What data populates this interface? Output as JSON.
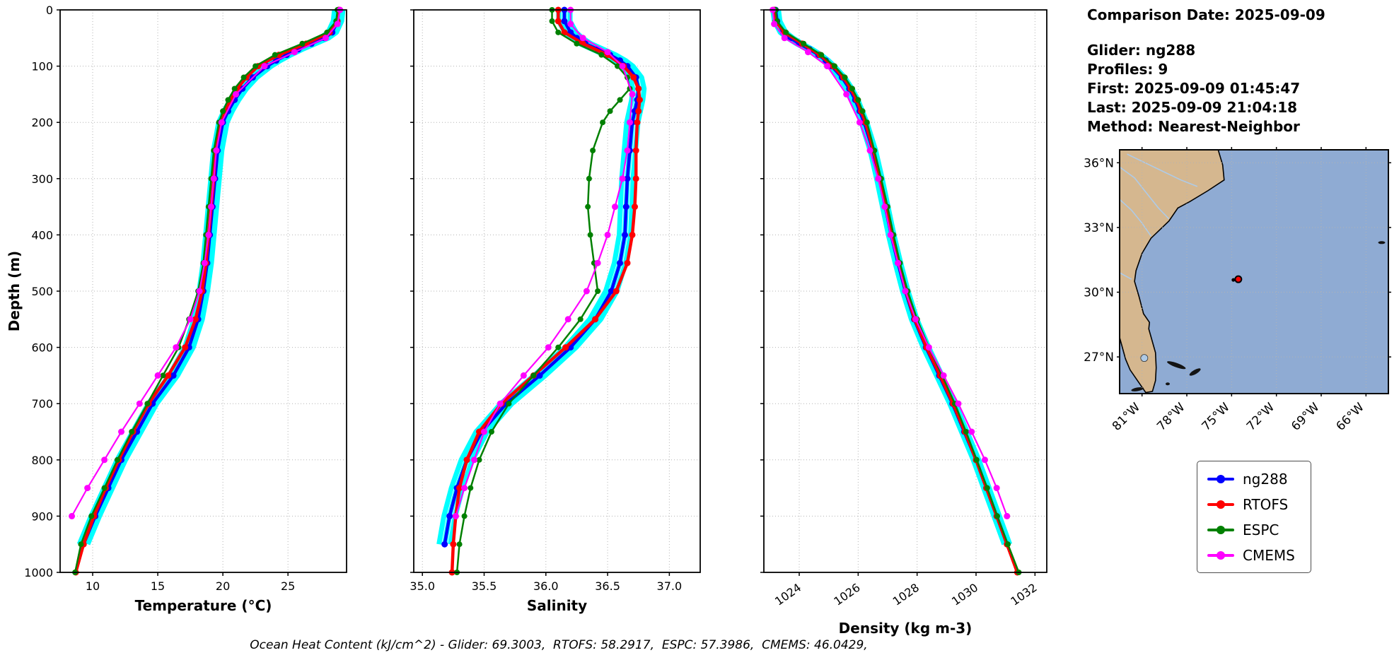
{
  "info": {
    "comparison_date": "Comparison Date: 2025-09-09",
    "glider": "Glider: ng288",
    "profiles": "Profiles: 9",
    "first": "First: 2025-09-09 01:45:47",
    "last": "Last: 2025-09-09 21:04:18",
    "method": "Method: Nearest-Neighbor"
  },
  "footer": "Ocean Heat Content (kJ/cm^2) - Glider: 69.3003,  RTOFS: 58.2917,  ESPC: 57.3986,  CMEMS: 46.0429,",
  "legend": {
    "items": [
      {
        "label": "ng288",
        "color": "#0000ff"
      },
      {
        "label": "RTOFS",
        "color": "#ff0000"
      },
      {
        "label": "ESPC",
        "color": "#008000"
      },
      {
        "label": "CMEMS",
        "color": "#ff00ff"
      }
    ]
  },
  "map": {
    "lon_range": [
      -82.5,
      -64.5
    ],
    "lat_range": [
      25.3,
      36.6
    ],
    "ocean_color": "#8fabd3",
    "land_color": "#d5b78f",
    "river_color": "#aecbe8",
    "lat_ticks": [
      {
        "v": 36,
        "label": "36°N"
      },
      {
        "v": 33,
        "label": "33°N"
      },
      {
        "v": 30,
        "label": "30°N"
      },
      {
        "v": 27,
        "label": "27°N"
      }
    ],
    "lon_ticks": [
      {
        "v": -81,
        "label": "81°W"
      },
      {
        "v": -78,
        "label": "78°W"
      },
      {
        "v": -75,
        "label": "75°W"
      },
      {
        "v": -72,
        "label": "72°W"
      },
      {
        "v": -69,
        "label": "69°W"
      },
      {
        "v": -66,
        "label": "66°W"
      }
    ],
    "marker": {
      "lon": -74.55,
      "lat": 30.6,
      "color": "#ff0000"
    }
  },
  "chart_data": [
    {
      "type": "line",
      "xlabel": "Temperature (°C)",
      "ylabel": "Depth (m)",
      "xlim": [
        7.5,
        29.5
      ],
      "ylim": [
        0,
        1000
      ],
      "show_ytick_labels": true,
      "rotate_xticks": false,
      "xlabel_dy": 54,
      "envelope_series": "ng288",
      "envelope_color": "#00ffff",
      "envelope_dx": 6,
      "xticks": [
        {
          "v": 10,
          "label": "10"
        },
        {
          "v": 15,
          "label": "15"
        },
        {
          "v": 20,
          "label": "20"
        },
        {
          "v": 25,
          "label": "25"
        }
      ],
      "yticks": [
        {
          "v": 0,
          "label": "0"
        },
        {
          "v": 100,
          "label": "100"
        },
        {
          "v": 200,
          "label": "200"
        },
        {
          "v": 300,
          "label": "300"
        },
        {
          "v": 400,
          "label": "400"
        },
        {
          "v": 500,
          "label": "500"
        },
        {
          "v": 600,
          "label": "600"
        },
        {
          "v": 700,
          "label": "700"
        },
        {
          "v": 800,
          "label": "800"
        },
        {
          "v": 900,
          "label": "900"
        },
        {
          "v": 1000,
          "label": "1000"
        }
      ],
      "series": [
        {
          "name": "ng288",
          "color": "#0000ff",
          "lw": 4.5,
          "marker": 4.5,
          "depths": [
            0,
            20,
            40,
            50,
            60,
            70,
            80,
            90,
            100,
            120,
            140,
            160,
            180,
            200,
            250,
            300,
            350,
            400,
            450,
            500,
            550,
            600,
            650,
            700,
            750,
            800,
            850,
            900,
            950
          ],
          "values": [
            28.9,
            28.8,
            28.4,
            27.8,
            26.8,
            25.8,
            24.9,
            24.1,
            23.4,
            22.3,
            21.5,
            20.9,
            20.4,
            20.0,
            19.6,
            19.4,
            19.2,
            19.0,
            18.8,
            18.5,
            18.1,
            17.4,
            16.2,
            14.6,
            13.4,
            12.2,
            11.2,
            10.2,
            9.3
          ]
        },
        {
          "name": "RTOFS",
          "color": "#ff0000",
          "lw": 4.5,
          "marker": 4.5,
          "depths": [
            0,
            20,
            40,
            60,
            80,
            100,
            120,
            140,
            160,
            180,
            200,
            250,
            300,
            350,
            400,
            450,
            500,
            550,
            600,
            650,
            700,
            750,
            800,
            850,
            900,
            950,
            1000
          ],
          "values": [
            28.9,
            28.8,
            28.2,
            26.4,
            24.3,
            22.7,
            21.8,
            21.1,
            20.6,
            20.1,
            19.8,
            19.4,
            19.3,
            19.1,
            18.9,
            18.7,
            18.4,
            17.9,
            17.1,
            15.8,
            14.3,
            13.1,
            12.0,
            11.0,
            10.1,
            9.3,
            8.7
          ]
        },
        {
          "name": "ESPC",
          "color": "#008000",
          "lw": 2.5,
          "marker": 4,
          "depths": [
            0,
            20,
            40,
            60,
            80,
            100,
            120,
            140,
            160,
            180,
            200,
            250,
            300,
            350,
            400,
            450,
            500,
            550,
            600,
            650,
            700,
            750,
            800,
            850,
            900,
            950,
            1000
          ],
          "values": [
            28.8,
            28.7,
            28.0,
            26.1,
            24.0,
            22.5,
            21.6,
            20.9,
            20.4,
            20.0,
            19.7,
            19.3,
            19.1,
            18.9,
            18.7,
            18.5,
            18.1,
            17.4,
            16.6,
            15.4,
            14.2,
            13.0,
            11.9,
            10.9,
            9.9,
            9.1,
            8.65
          ]
        },
        {
          "name": "CMEMS",
          "color": "#ff00ff",
          "lw": 2.2,
          "marker": 4.5,
          "depths": [
            0,
            25,
            50,
            75,
            100,
            150,
            200,
            250,
            300,
            350,
            400,
            450,
            500,
            550,
            600,
            650,
            700,
            750,
            800,
            850,
            900
          ],
          "values": [
            29.0,
            28.8,
            27.9,
            25.5,
            23.2,
            21.0,
            19.9,
            19.5,
            19.3,
            19.1,
            18.9,
            18.6,
            18.2,
            17.5,
            16.4,
            15.0,
            13.6,
            12.2,
            10.9,
            9.6,
            8.4
          ]
        }
      ]
    },
    {
      "type": "line",
      "xlabel": "Salinity",
      "ylabel": "",
      "xlim": [
        34.93,
        37.25
      ],
      "ylim": [
        0,
        1000
      ],
      "show_ytick_labels": false,
      "rotate_xticks": false,
      "xlabel_dy": 54,
      "envelope_series": "ng288",
      "envelope_color": "#00ffff",
      "envelope_dx": 8,
      "xticks": [
        {
          "v": 35.0,
          "label": "35.0"
        },
        {
          "v": 35.5,
          "label": "35.5"
        },
        {
          "v": 36.0,
          "label": "36.0"
        },
        {
          "v": 36.5,
          "label": "36.5"
        },
        {
          "v": 37.0,
          "label": "37.0"
        }
      ],
      "yticks": [
        {
          "v": 0,
          "label": "0"
        },
        {
          "v": 100,
          "label": "100"
        },
        {
          "v": 200,
          "label": "200"
        },
        {
          "v": 300,
          "label": "300"
        },
        {
          "v": 400,
          "label": "400"
        },
        {
          "v": 500,
          "label": "500"
        },
        {
          "v": 600,
          "label": "600"
        },
        {
          "v": 700,
          "label": "700"
        },
        {
          "v": 800,
          "label": "800"
        },
        {
          "v": 900,
          "label": "900"
        },
        {
          "v": 1000,
          "label": "1000"
        }
      ],
      "series": [
        {
          "name": "ng288",
          "color": "#0000ff",
          "lw": 4.5,
          "marker": 4.5,
          "depths": [
            0,
            20,
            40,
            50,
            60,
            70,
            80,
            90,
            100,
            120,
            140,
            160,
            180,
            200,
            250,
            300,
            350,
            400,
            450,
            500,
            550,
            600,
            650,
            700,
            750,
            800,
            850,
            900,
            950
          ],
          "values": [
            36.15,
            36.15,
            36.2,
            36.25,
            36.32,
            36.42,
            36.52,
            36.6,
            36.66,
            36.73,
            36.75,
            36.74,
            36.72,
            36.7,
            36.68,
            36.66,
            36.65,
            36.64,
            36.6,
            36.53,
            36.4,
            36.2,
            35.95,
            35.68,
            35.48,
            35.36,
            35.28,
            35.22,
            35.18
          ]
        },
        {
          "name": "RTOFS",
          "color": "#ff0000",
          "lw": 4.5,
          "marker": 4.5,
          "depths": [
            0,
            20,
            40,
            60,
            80,
            100,
            120,
            140,
            160,
            180,
            200,
            250,
            300,
            350,
            400,
            450,
            500,
            550,
            600,
            650,
            700,
            750,
            800,
            850,
            900,
            950,
            1000
          ],
          "values": [
            36.1,
            36.1,
            36.15,
            36.3,
            36.5,
            36.63,
            36.71,
            36.75,
            36.76,
            36.75,
            36.74,
            36.73,
            36.73,
            36.72,
            36.7,
            36.66,
            36.57,
            36.4,
            36.16,
            35.9,
            35.64,
            35.46,
            35.36,
            35.3,
            35.27,
            35.25,
            35.24
          ]
        },
        {
          "name": "ESPC",
          "color": "#008000",
          "lw": 2.5,
          "marker": 4,
          "depths": [
            0,
            20,
            40,
            60,
            80,
            100,
            120,
            140,
            160,
            180,
            200,
            250,
            300,
            350,
            400,
            450,
            500,
            550,
            600,
            650,
            700,
            750,
            800,
            850,
            900,
            950,
            1000
          ],
          "values": [
            36.05,
            36.05,
            36.1,
            36.25,
            36.45,
            36.58,
            36.66,
            36.68,
            36.6,
            36.52,
            36.46,
            36.38,
            36.35,
            36.34,
            36.36,
            36.39,
            36.42,
            36.28,
            36.1,
            35.9,
            35.7,
            35.56,
            35.46,
            35.39,
            35.34,
            35.3,
            35.28
          ]
        },
        {
          "name": "CMEMS",
          "color": "#ff00ff",
          "lw": 2.2,
          "marker": 4.5,
          "depths": [
            0,
            25,
            50,
            75,
            100,
            150,
            200,
            250,
            300,
            350,
            400,
            450,
            500,
            550,
            600,
            650,
            700,
            750,
            800,
            850,
            900
          ],
          "values": [
            36.2,
            36.2,
            36.3,
            36.5,
            36.62,
            36.7,
            36.68,
            36.66,
            36.62,
            36.56,
            36.5,
            36.42,
            36.33,
            36.18,
            36.02,
            35.82,
            35.63,
            35.5,
            35.42,
            35.34,
            35.27
          ]
        }
      ]
    },
    {
      "type": "line",
      "xlabel": "Density (kg m-3)",
      "ylabel": "",
      "xlim": [
        1022.8,
        1032.4
      ],
      "ylim": [
        0,
        1000
      ],
      "show_ytick_labels": false,
      "rotate_xticks": true,
      "xlabel_dy": 86,
      "envelope_series": "ng288",
      "envelope_color": "#00ffff",
      "envelope_dx": 4,
      "xticks": [
        {
          "v": 1024,
          "label": "1024"
        },
        {
          "v": 1026,
          "label": "1026"
        },
        {
          "v": 1028,
          "label": "1028"
        },
        {
          "v": 1030,
          "label": "1030"
        },
        {
          "v": 1032,
          "label": "1032"
        }
      ],
      "yticks": [
        {
          "v": 0,
          "label": "0"
        },
        {
          "v": 100,
          "label": "100"
        },
        {
          "v": 200,
          "label": "200"
        },
        {
          "v": 300,
          "label": "300"
        },
        {
          "v": 400,
          "label": "400"
        },
        {
          "v": 500,
          "label": "500"
        },
        {
          "v": 600,
          "label": "600"
        },
        {
          "v": 700,
          "label": "700"
        },
        {
          "v": 800,
          "label": "800"
        },
        {
          "v": 900,
          "label": "900"
        },
        {
          "v": 1000,
          "label": "1000"
        }
      ],
      "series": [
        {
          "name": "ng288",
          "color": "#0000ff",
          "lw": 4.5,
          "marker": 4.5,
          "depths": [
            0,
            20,
            40,
            50,
            60,
            70,
            80,
            90,
            100,
            120,
            140,
            160,
            180,
            200,
            250,
            300,
            350,
            400,
            450,
            500,
            550,
            600,
            650,
            700,
            750,
            800,
            850,
            900,
            950
          ],
          "values": [
            1023.2,
            1023.25,
            1023.45,
            1023.7,
            1024.0,
            1024.35,
            1024.65,
            1024.9,
            1025.1,
            1025.45,
            1025.7,
            1025.9,
            1026.05,
            1026.2,
            1026.5,
            1026.72,
            1026.92,
            1027.12,
            1027.35,
            1027.6,
            1027.9,
            1028.3,
            1028.75,
            1029.2,
            1029.6,
            1030.0,
            1030.35,
            1030.7,
            1031.05
          ]
        },
        {
          "name": "RTOFS",
          "color": "#ff0000",
          "lw": 4.5,
          "marker": 4.5,
          "depths": [
            0,
            20,
            40,
            60,
            80,
            100,
            120,
            140,
            160,
            180,
            200,
            250,
            300,
            350,
            400,
            450,
            500,
            550,
            600,
            650,
            700,
            750,
            800,
            850,
            900,
            950,
            1000
          ],
          "values": [
            1023.15,
            1023.2,
            1023.5,
            1024.1,
            1024.7,
            1025.15,
            1025.5,
            1025.75,
            1025.95,
            1026.1,
            1026.25,
            1026.52,
            1026.75,
            1026.95,
            1027.15,
            1027.38,
            1027.62,
            1027.92,
            1028.32,
            1028.78,
            1029.22,
            1029.62,
            1030.0,
            1030.35,
            1030.7,
            1031.05,
            1031.4
          ]
        },
        {
          "name": "ESPC",
          "color": "#008000",
          "lw": 2.5,
          "marker": 4,
          "depths": [
            0,
            20,
            40,
            60,
            80,
            100,
            120,
            140,
            160,
            180,
            200,
            250,
            300,
            350,
            400,
            450,
            500,
            550,
            600,
            650,
            700,
            750,
            800,
            850,
            900,
            950,
            1000
          ],
          "values": [
            1023.2,
            1023.25,
            1023.55,
            1024.15,
            1024.75,
            1025.2,
            1025.55,
            1025.8,
            1026.0,
            1026.15,
            1026.3,
            1026.55,
            1026.78,
            1027.0,
            1027.2,
            1027.42,
            1027.68,
            1028.0,
            1028.4,
            1028.85,
            1029.28,
            1029.66,
            1030.02,
            1030.38,
            1030.72,
            1031.08,
            1031.45
          ]
        },
        {
          "name": "CMEMS",
          "color": "#ff00ff",
          "lw": 2.2,
          "marker": 4.5,
          "depths": [
            0,
            25,
            50,
            75,
            100,
            150,
            200,
            250,
            300,
            350,
            400,
            450,
            500,
            550,
            600,
            650,
            700,
            750,
            800,
            850,
            900
          ],
          "values": [
            1023.1,
            1023.15,
            1023.5,
            1024.3,
            1024.95,
            1025.6,
            1026.05,
            1026.4,
            1026.68,
            1026.9,
            1027.1,
            1027.35,
            1027.6,
            1027.95,
            1028.4,
            1028.9,
            1029.4,
            1029.85,
            1030.3,
            1030.7,
            1031.05
          ]
        }
      ]
    }
  ]
}
